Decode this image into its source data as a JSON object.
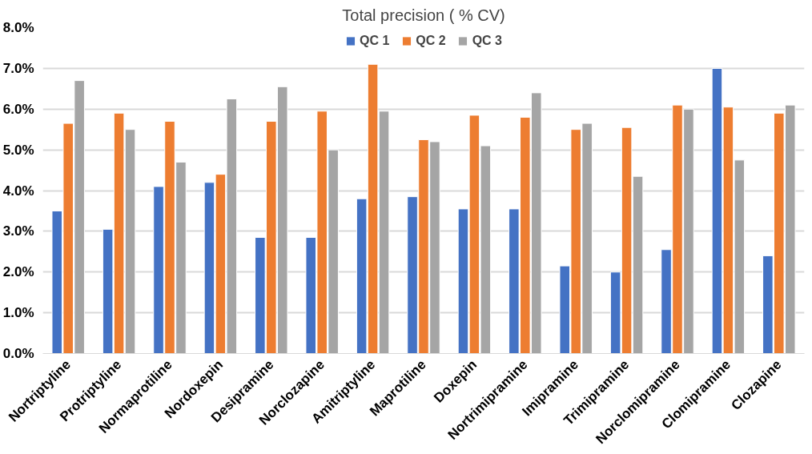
{
  "chart_data": {
    "type": "bar",
    "title": "Total precision ( % CV)",
    "categories": [
      "Nortriptyline",
      "Protriptyline",
      "Normaprotiline",
      "Nordoxepin",
      "Desipramine",
      "Norclozapine",
      "Amitriptyline",
      "Maprotiline",
      "Doxepin",
      "Nortrimipramine",
      "Imipramine",
      "Trimipramine",
      "Norclomipramine",
      "Clomipramine",
      "Clozapine"
    ],
    "series": [
      {
        "name": "QC 1",
        "color": "#4472c4",
        "values": [
          3.5,
          3.05,
          4.1,
          4.2,
          2.85,
          2.85,
          3.8,
          3.85,
          3.55,
          3.55,
          2.15,
          2.0,
          2.55,
          7.0,
          2.4
        ]
      },
      {
        "name": "QC 2",
        "color": "#ed7d31",
        "values": [
          5.65,
          5.9,
          5.7,
          4.4,
          5.7,
          5.95,
          7.1,
          5.25,
          5.85,
          5.8,
          5.5,
          5.55,
          6.1,
          6.05,
          5.9
        ]
      },
      {
        "name": "QC 3",
        "color": "#a5a5a5",
        "values": [
          6.7,
          5.5,
          4.7,
          6.25,
          6.55,
          5.0,
          5.95,
          5.2,
          5.1,
          6.4,
          5.65,
          4.35,
          6.0,
          4.75,
          6.1
        ]
      }
    ],
    "ylim": [
      0,
      8
    ],
    "yticks": [
      {
        "value": 0,
        "label": "0.0%"
      },
      {
        "value": 1,
        "label": "1.0%"
      },
      {
        "value": 2,
        "label": "2.0%"
      },
      {
        "value": 3,
        "label": "3.0%"
      },
      {
        "value": 4,
        "label": "4.0%"
      },
      {
        "value": 5,
        "label": "5.0%"
      },
      {
        "value": 6,
        "label": "6.0%"
      },
      {
        "value": 7,
        "label": "7.0%"
      },
      {
        "value": 8,
        "label": "8.0%"
      }
    ],
    "grid": "y",
    "legend": "top"
  }
}
